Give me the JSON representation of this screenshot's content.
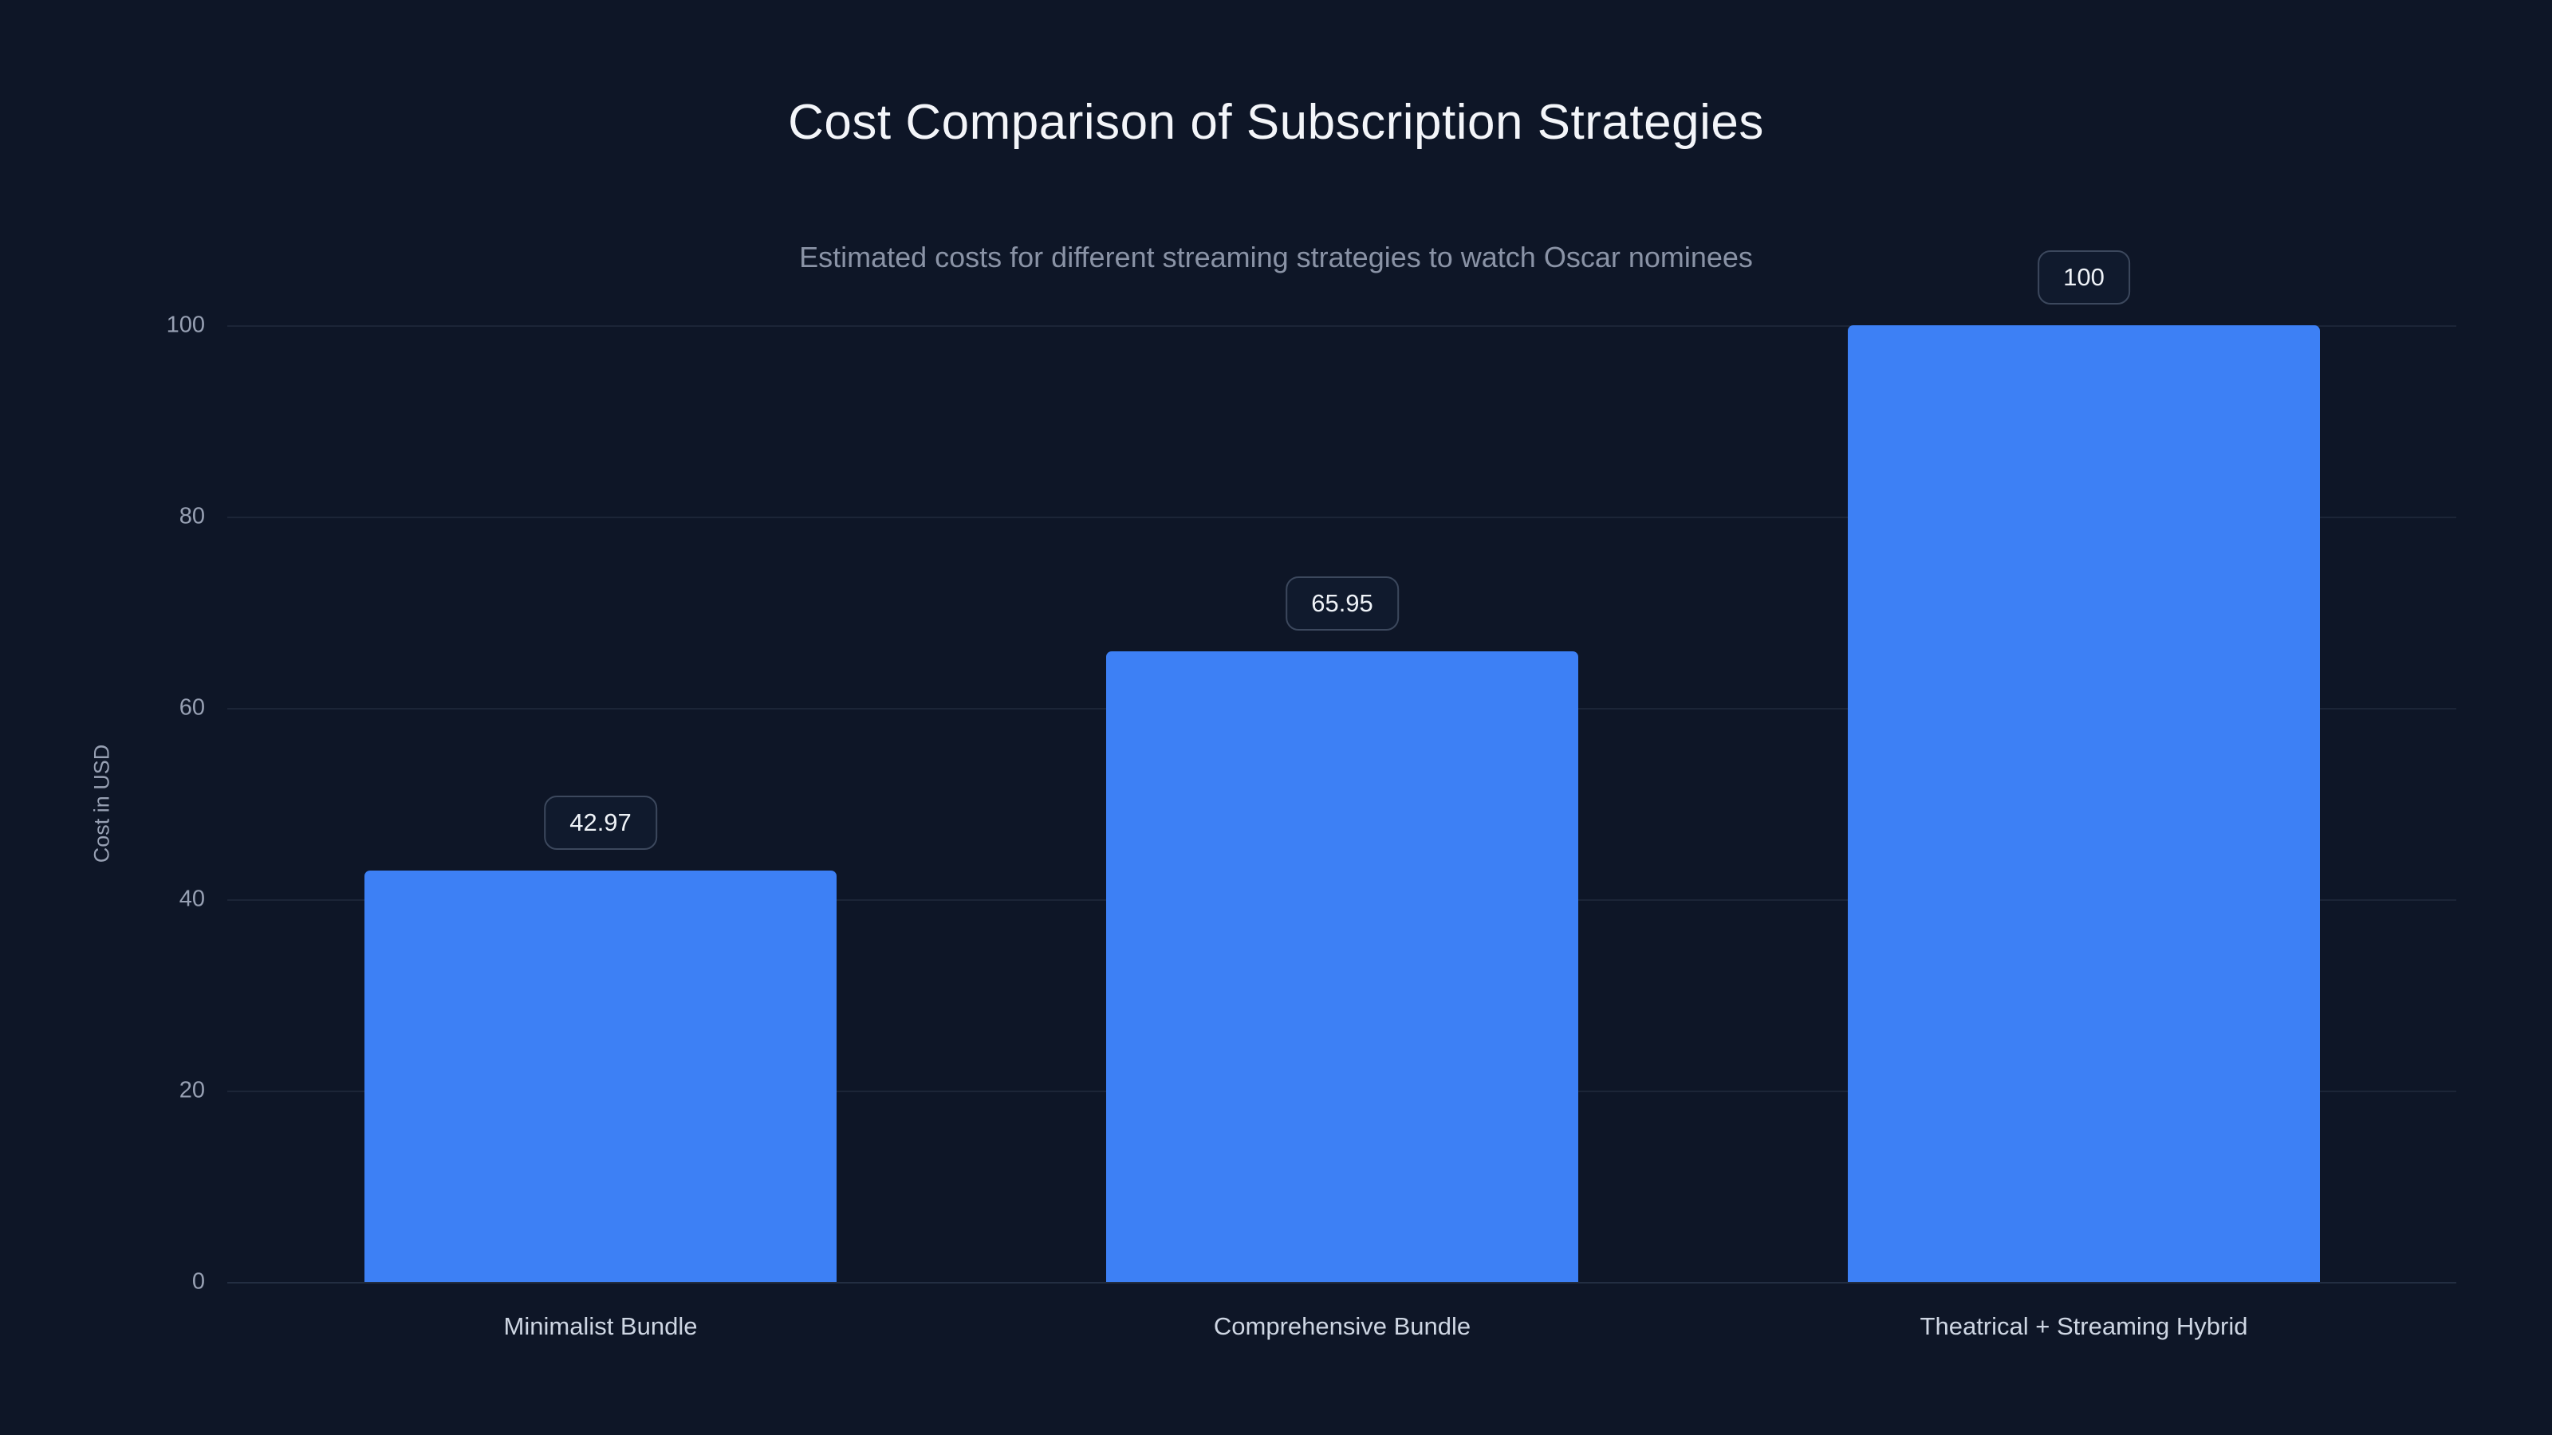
{
  "chart_data": {
    "type": "bar",
    "title": "Cost Comparison of Subscription Strategies",
    "subtitle": "Estimated costs for different streaming strategies to watch Oscar nominees",
    "ylabel": "Cost in USD",
    "xlabel": "",
    "categories": [
      "Minimalist Bundle",
      "Comprehensive Bundle",
      "Theatrical + Streaming Hybrid"
    ],
    "values": [
      42.97,
      65.95,
      100
    ],
    "value_labels": [
      "42.97",
      "65.95",
      "100"
    ],
    "ylim": [
      0,
      100
    ],
    "yticks": [
      0,
      20,
      40,
      60,
      80,
      100
    ],
    "grid": true,
    "legend": false,
    "bar_color": "#3d80f5",
    "background_color": "#0e1627"
  }
}
